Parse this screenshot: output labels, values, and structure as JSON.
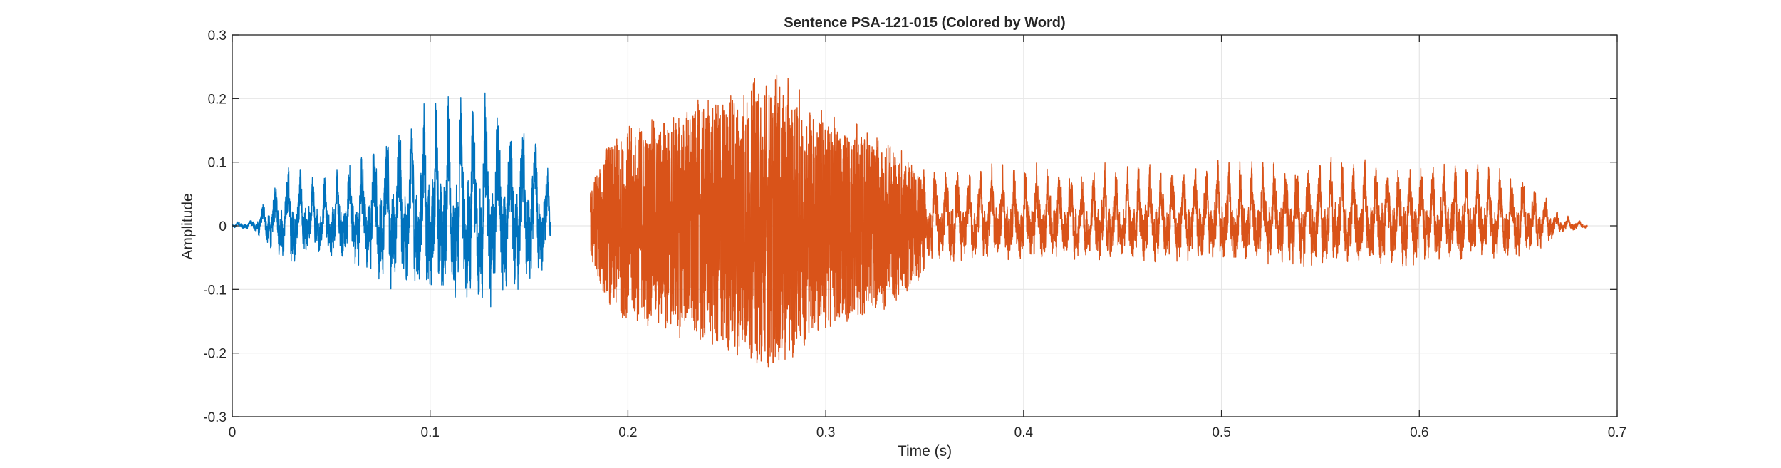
{
  "chart_data": {
    "type": "line",
    "title": "Sentence PSA-121-015 (Colored by Word)",
    "xlabel": "Time (s)",
    "ylabel": "Amplitude",
    "xlim": [
      0,
      0.7
    ],
    "ylim": [
      -0.3,
      0.3
    ],
    "grid": true,
    "x_ticks": [
      0,
      0.1,
      0.2,
      0.3,
      0.4,
      0.5,
      0.6,
      0.7
    ],
    "x_tick_labels": [
      "0",
      "0.1",
      "0.2",
      "0.3",
      "0.4",
      "0.5",
      "0.6",
      "0.7"
    ],
    "y_ticks": [
      -0.3,
      -0.2,
      -0.1,
      0,
      0.1,
      0.2,
      0.3
    ],
    "y_tick_labels": [
      "-0.3",
      "-0.2",
      "-0.1",
      "0",
      "0.1",
      "0.2",
      "0.3"
    ],
    "series": [
      {
        "color": "#0072BD",
        "t_start": 0.0,
        "t_end": 0.161,
        "f0_hz": 160,
        "envelope": [
          [
            0.0,
            0.005
          ],
          [
            0.01,
            0.01
          ],
          [
            0.02,
            0.06
          ],
          [
            0.03,
            0.1
          ],
          [
            0.04,
            0.07
          ],
          [
            0.05,
            0.08
          ],
          [
            0.065,
            0.11
          ],
          [
            0.08,
            0.16
          ],
          [
            0.1,
            0.19
          ],
          [
            0.12,
            0.2
          ],
          [
            0.13,
            0.2
          ],
          [
            0.14,
            0.17
          ],
          [
            0.15,
            0.15
          ],
          [
            0.158,
            0.12
          ],
          [
            0.161,
            0.04
          ]
        ]
      },
      {
        "color": "#D95319",
        "t_start": 0.181,
        "t_end": 0.685,
        "f0_hz": 175,
        "envelope": [
          [
            0.181,
            0.06
          ],
          [
            0.19,
            0.14
          ],
          [
            0.2,
            0.16
          ],
          [
            0.22,
            0.18
          ],
          [
            0.24,
            0.21
          ],
          [
            0.26,
            0.23
          ],
          [
            0.275,
            0.25
          ],
          [
            0.29,
            0.2
          ],
          [
            0.31,
            0.17
          ],
          [
            0.33,
            0.14
          ],
          [
            0.35,
            0.09
          ],
          [
            0.4,
            0.09
          ],
          [
            0.45,
            0.09
          ],
          [
            0.5,
            0.095
          ],
          [
            0.55,
            0.1
          ],
          [
            0.6,
            0.1
          ],
          [
            0.63,
            0.09
          ],
          [
            0.65,
            0.08
          ],
          [
            0.66,
            0.06
          ],
          [
            0.67,
            0.02
          ],
          [
            0.685,
            0.005
          ]
        ]
      }
    ]
  }
}
